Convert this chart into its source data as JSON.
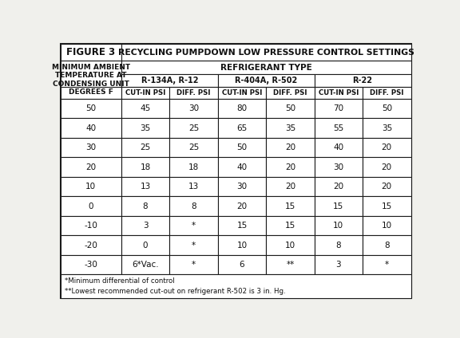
{
  "title_fig": "FIGURE 3",
  "title_main": "RECYCLING PUMPDOWN LOW PRESSURE CONTROL SETTINGS",
  "refrigerant_type_label": "REFRIGERANT TYPE",
  "col_groups": [
    "R-134A, R-12",
    "R-404A, R-502",
    "R-22"
  ],
  "col_subheaders": [
    "CUT-IN PSI",
    "DIFF. PSI",
    "CUT-IN PSI",
    "DIFF. PSI",
    "CUT-IN PSI",
    "DIFF. PSI"
  ],
  "row_header": "MINIMUM AMBIENT\nTEMPERATURE AT\nCONDENSING UNIT\nDEGREES F",
  "temps": [
    "50",
    "40",
    "30",
    "20",
    "10",
    "0",
    "-10",
    "-20",
    "-30"
  ],
  "data": [
    [
      "45",
      "30",
      "80",
      "50",
      "70",
      "50"
    ],
    [
      "35",
      "25",
      "65",
      "35",
      "55",
      "35"
    ],
    [
      "25",
      "25",
      "50",
      "20",
      "40",
      "20"
    ],
    [
      "18",
      "18",
      "40",
      "20",
      "30",
      "20"
    ],
    [
      "13",
      "13",
      "30",
      "20",
      "20",
      "20"
    ],
    [
      "8",
      "8",
      "20",
      "15",
      "15",
      "15"
    ],
    [
      "3",
      "*",
      "15",
      "15",
      "10",
      "10"
    ],
    [
      "0",
      "*",
      "10",
      "10",
      "8",
      "8"
    ],
    [
      "6*Vac.",
      "*",
      "6",
      "**",
      "3",
      "*"
    ]
  ],
  "footnote1": "*Minimum differential of control",
  "footnote2": "**Lowest recommended cut-out on refrigerant R-502 is 3 in. Hg.",
  "bg_color": "#f0f0ec",
  "cell_bg": "#ffffff",
  "border_color": "#1a1a1a",
  "text_color": "#111111"
}
